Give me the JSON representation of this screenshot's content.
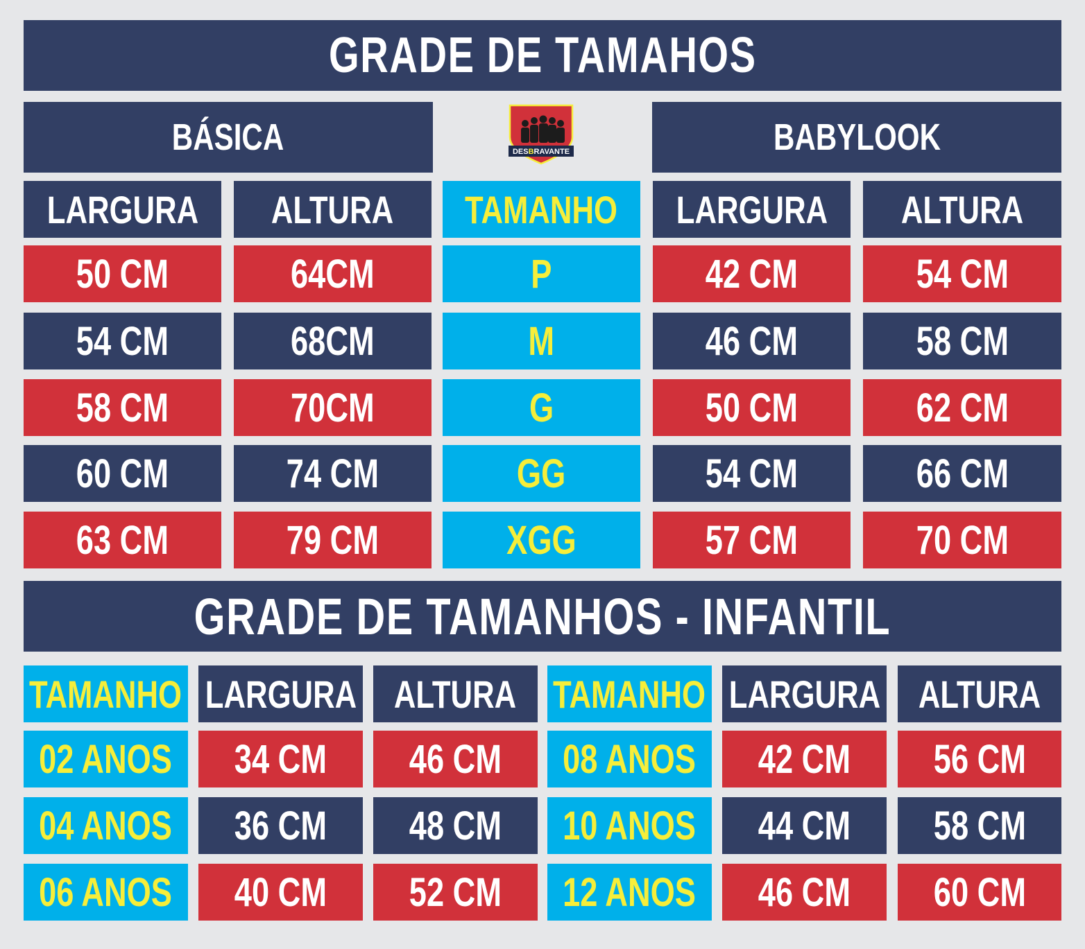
{
  "title": "GRADE DE  TAMAHOS",
  "logo": {
    "text_pre": "DES",
    "text_mid": "B",
    "text_post": "RAVANTE"
  },
  "adult": {
    "basica_label": "BÁSICA",
    "babylook_label": "BABYLOOK",
    "headers": {
      "largura": "LARGURA",
      "altura": "ALTURA",
      "tamanho": "TAMANHO"
    },
    "rows": [
      {
        "b_largura": "50 CM",
        "b_altura": "64CM",
        "size": "P",
        "bl_largura": "42 CM",
        "bl_altura": "54 CM"
      },
      {
        "b_largura": "54 CM",
        "b_altura": "68CM",
        "size": "M",
        "bl_largura": "46 CM",
        "bl_altura": "58 CM"
      },
      {
        "b_largura": "58 CM",
        "b_altura": "70CM",
        "size": "G",
        "bl_largura": "50 CM",
        "bl_altura": "62 CM"
      },
      {
        "b_largura": "60 CM",
        "b_altura": "74 CM",
        "size": "GG",
        "bl_largura": "54 CM",
        "bl_altura": "66 CM"
      },
      {
        "b_largura": "63 CM",
        "b_altura": "79 CM",
        "size": "XGG",
        "bl_largura": "57 CM",
        "bl_altura": "70 CM"
      }
    ]
  },
  "kids": {
    "title": "GRADE DE  TAMANHOS - INFANTIL",
    "headers": {
      "tamanho": "TAMANHO",
      "largura": "LARGURA",
      "altura": "ALTURA"
    },
    "rows": [
      {
        "l_size": "02 ANOS",
        "l_largura": "34 CM",
        "l_altura": "46 CM",
        "r_size": "08 ANOS",
        "r_largura": "42 CM",
        "r_altura": "56 CM"
      },
      {
        "l_size": "04 ANOS",
        "l_largura": "36 CM",
        "l_altura": "48 CM",
        "r_size": "10 ANOS",
        "r_largura": "44 CM",
        "r_altura": "58 CM"
      },
      {
        "l_size": "06 ANOS",
        "l_largura": "40 CM",
        "l_altura": "52 CM",
        "r_size": "12 ANOS",
        "r_largura": "46 CM",
        "r_altura": "60 CM"
      }
    ]
  },
  "colors": {
    "navy": "#323f64",
    "red": "#d1313a",
    "cyan": "#00b0ea",
    "yellow": "#f6ee3a",
    "background": "#e6e7e9"
  }
}
